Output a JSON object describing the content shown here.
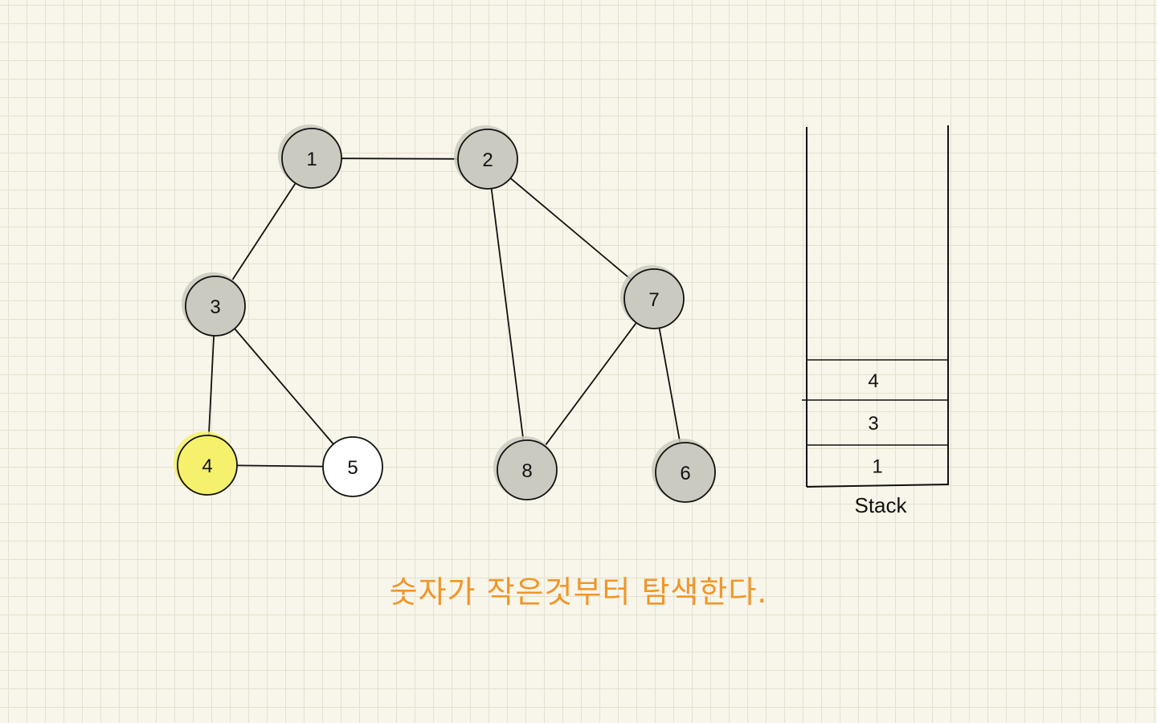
{
  "graph": {
    "nodes": [
      {
        "id": "1",
        "label": "1",
        "state": "visited"
      },
      {
        "id": "2",
        "label": "2",
        "state": "visited"
      },
      {
        "id": "3",
        "label": "3",
        "state": "visited"
      },
      {
        "id": "4",
        "label": "4",
        "state": "current"
      },
      {
        "id": "5",
        "label": "5",
        "state": "unvisited"
      },
      {
        "id": "6",
        "label": "6",
        "state": "visited"
      },
      {
        "id": "7",
        "label": "7",
        "state": "visited"
      },
      {
        "id": "8",
        "label": "8",
        "state": "visited"
      }
    ],
    "edges": [
      {
        "from": "1",
        "to": "2"
      },
      {
        "from": "1",
        "to": "3"
      },
      {
        "from": "2",
        "to": "7"
      },
      {
        "from": "2",
        "to": "8"
      },
      {
        "from": "3",
        "to": "4"
      },
      {
        "from": "3",
        "to": "5"
      },
      {
        "from": "4",
        "to": "5"
      },
      {
        "from": "7",
        "to": "8"
      },
      {
        "from": "7",
        "to": "6"
      }
    ]
  },
  "stack": {
    "caption": "Stack",
    "items": [
      "4",
      "3",
      "1"
    ]
  },
  "caption": "숫자가 작은것부터 탐색한다.",
  "colors": {
    "visited": "#cbcac0",
    "current": "#f5f16c",
    "unvisited": "#ffffff",
    "caption": "#f0962a",
    "stroke": "#111111"
  }
}
